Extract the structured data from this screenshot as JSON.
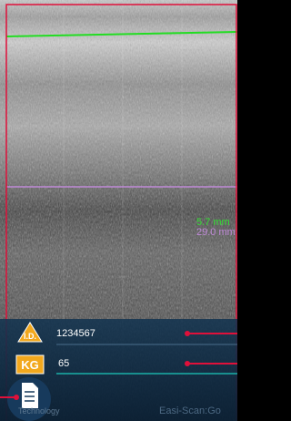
{
  "measurements": {
    "depth_1": "5.7 mm",
    "depth_2": "29.0 mm"
  },
  "patient": {
    "id_label": "I.D.",
    "id": "1234567",
    "weight_label": "KG",
    "weight": "65"
  },
  "footer": {
    "brand": "Technology",
    "product": "Easi-Scan:Go"
  }
}
